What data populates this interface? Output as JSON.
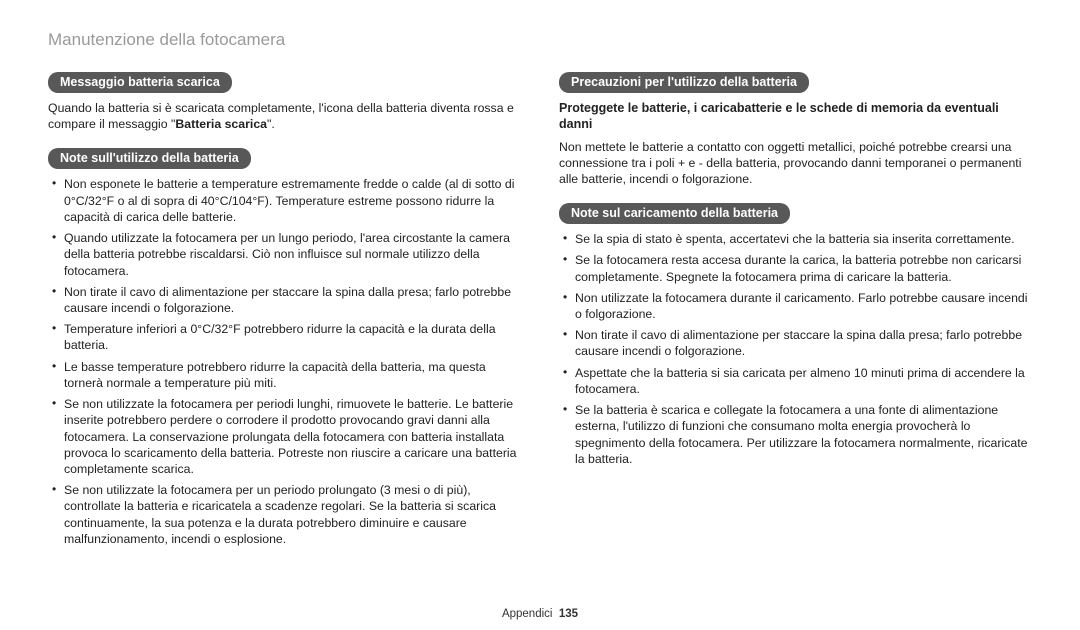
{
  "pageTitle": "Manutenzione della fotocamera",
  "left": {
    "sec1": {
      "heading": "Messaggio batteria scarica",
      "para_pre": "Quando la batteria si è scaricata completamente, l'icona della batteria diventa rossa e compare il messaggio \"",
      "para_bold": "Batteria scarica",
      "para_post": "\"."
    },
    "sec2": {
      "heading": "Note sull'utilizzo della batteria",
      "items": [
        "Non esponete le batterie a temperature estremamente fredde o calde (al di sotto di 0°C/32°F o al di sopra di 40°C/104°F). Temperature estreme possono ridurre la capacità di carica delle batterie.",
        "Quando utilizzate la fotocamera per un lungo periodo, l'area circostante la camera della batteria potrebbe riscaldarsi. Ciò non influisce sul normale utilizzo della fotocamera.",
        "Non tirate il cavo di alimentazione per staccare la spina dalla presa; farlo potrebbe causare incendi o folgorazione.",
        "Temperature inferiori a 0°C/32°F potrebbero ridurre la capacità e la durata della batteria.",
        "Le basse temperature potrebbero ridurre la capacità della batteria, ma questa tornerà normale a temperature più miti.",
        "Se non utilizzate la fotocamera per periodi lunghi, rimuovete le batterie. Le batterie inserite potrebbero perdere o corrodere il prodotto provocando gravi danni alla fotocamera. La conservazione prolungata della fotocamera con batteria installata provoca lo scaricamento della batteria. Potreste non riuscire a caricare una batteria completamente scarica.",
        "Se non utilizzate la fotocamera per un periodo prolungato (3 mesi o di più), controllate la batteria e ricaricatela a scadenze regolari. Se la batteria si scarica continuamente, la sua potenza e la durata potrebbero diminuire e causare malfunzionamento, incendi o esplosione."
      ]
    }
  },
  "right": {
    "sec1": {
      "heading": "Precauzioni per l'utilizzo della batteria",
      "subhead": "Proteggete le batterie, i caricabatterie e le schede di memoria da eventuali danni",
      "para": "Non mettete le batterie a contatto con oggetti metallici, poiché potrebbe crearsi una connessione tra i poli + e - della batteria, provocando danni temporanei o permanenti alle batterie, incendi o folgorazione."
    },
    "sec2": {
      "heading": "Note sul caricamento della batteria",
      "items": [
        "Se la spia di stato è spenta, accertatevi che la batteria sia inserita correttamente.",
        "Se la fotocamera resta accesa durante la carica, la batteria potrebbe non caricarsi completamente. Spegnete la fotocamera prima di caricare la batteria.",
        "Non utilizzate la fotocamera durante il caricamento. Farlo potrebbe causare incendi o folgorazione.",
        "Non tirate il cavo di alimentazione per staccare la spina dalla presa; farlo potrebbe causare incendi o folgorazione.",
        "Aspettate che la batteria si sia caricata per almeno 10 minuti prima di accendere la fotocamera.",
        "Se la batteria è scarica e collegate la fotocamera a una fonte di alimentazione esterna, l'utilizzo di funzioni che consumano molta energia provocherà lo spegnimento della fotocamera. Per utilizzare la fotocamera normalmente, ricaricate la batteria."
      ]
    }
  },
  "footer": {
    "label": "Appendici",
    "page": "135"
  }
}
